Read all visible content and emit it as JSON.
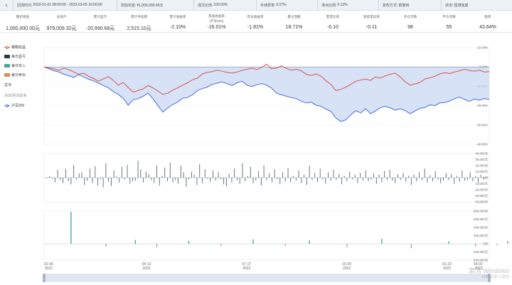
{
  "topbar": {
    "back_icon": "chevron-left-icon",
    "items": [
      {
        "label": "回测时间:",
        "value": "2022-01-01 08:00:00 - 2023-03-05 16:00:00"
      },
      {
        "label": "初始资金:",
        "value": "¥1,000,000.00元"
      },
      {
        "label": "成交比例:",
        "value": "100.00%"
      },
      {
        "label": "手续费率:",
        "value": "0.07%"
      },
      {
        "label": "滑点比例:",
        "value": "0.12%"
      },
      {
        "label": "复权方式:",
        "value": "前复权"
      },
      {
        "label": "状态:",
        "value": "回测完成"
      }
    ]
  },
  "stats": [
    {
      "label": "期初资金",
      "label2": "",
      "value": "1,000,000.00元"
    },
    {
      "label": "总资产",
      "label2": "",
      "value": "979,009.32元"
    },
    {
      "label": "累计盈亏",
      "label2": "",
      "value": "-20,990.68元"
    },
    {
      "label": "累计手续费",
      "label2": "",
      "value": "2,515.10元"
    },
    {
      "label": "累计收益率",
      "label2": "",
      "value": "-2.10%"
    },
    {
      "label": "基准收益率",
      "label2": "(沪深300)",
      "value": "-16.01%"
    },
    {
      "label": "年化收益率",
      "label2": "",
      "value": "-1.81%"
    },
    {
      "label": "最大回撤",
      "label2": "",
      "value": "18.71%"
    },
    {
      "label": "夏普比率",
      "label2": "",
      "value": "-0.10"
    },
    {
      "label": "索提诺比率",
      "label2": "",
      "value": "-0.11"
    },
    {
      "label": "开仓次数",
      "label2": "",
      "value": "98"
    },
    {
      "label": "平仓次数",
      "label2": "",
      "value": "55"
    },
    {
      "label": "胜率",
      "label2": "",
      "value": "43.64%"
    }
  ],
  "legend": {
    "strategy": "策略收益",
    "daily_pnl": "每日盈亏",
    "daily_buy": "每日买入",
    "daily_sell": "每日卖出",
    "benchmark_header": "基准",
    "add_benchmark": "添加/更改基准",
    "hs300": "沪深300"
  },
  "colors": {
    "strategy": "#d9534f",
    "benchmark": "#4a6fd0",
    "benchmark_fill": "#c9d8f3",
    "pnl": "#5a6672",
    "buy": "#2f9e8f",
    "sell": "#e0896a",
    "buy_legend": "#4aa3a0",
    "sell_legend": "#e08a5a",
    "pnl_legend": "#2b3542"
  },
  "axes": {
    "returns": [
      "10.00%",
      "0.00%",
      "-10.00%",
      "-20.00%",
      "-30.00%",
      "-40.00%"
    ],
    "pnl": [
      "40,000元",
      "30,000元",
      "20,000元",
      "10,000元",
      "0元",
      "-10,000元",
      "-20,000元",
      "-30,000元",
      "-40,000元"
    ],
    "trade": [
      "800,000元",
      "600,000元",
      "400,000元",
      "200,000元",
      "0元",
      "-200,000元",
      "-400,000元"
    ],
    "dates": [
      {
        "md": "01-06",
        "y": "2022"
      },
      {
        "md": "04-13",
        "y": "2022"
      },
      {
        "md": "07-17",
        "y": "2022"
      },
      {
        "md": "10-20",
        "y": "2022"
      },
      {
        "md": "01-23",
        "y": "2023"
      },
      {
        "md": "03-03",
        "y": "2023"
      }
    ]
  },
  "chart_data": [
    {
      "type": "line",
      "ylim": [
        -40,
        10
      ],
      "series": [
        {
          "name": "策略收益",
          "values": [
            0,
            -0.5,
            -1,
            -1.8,
            -0.6,
            -1.4,
            -2.6,
            -3.8,
            -3.2,
            -4.8,
            -6,
            -7.4,
            -6.2,
            -5,
            -7,
            -9.4,
            -8,
            -10.6,
            -13,
            -12.2,
            -11.4,
            -9.6,
            -10.8,
            -12.4,
            -14.2,
            -13.6,
            -12,
            -10.8,
            -9.4,
            -8.2,
            -6.6,
            -5.8,
            -3.6,
            -2.8,
            -2.4,
            -1.6,
            -2.2,
            -2.8,
            -3.2,
            -2.6,
            -1.8,
            -1.2,
            -0.6,
            -1.4,
            -0.2,
            1.4,
            -1,
            -0.6,
            0.6,
            -0.8,
            -1.6,
            -1.2,
            -2,
            -3.8,
            -4.4,
            -3.6,
            -4.8,
            -7.2,
            -9,
            -12.2,
            -11.6,
            -10.4,
            -9,
            -7.4,
            -6.8,
            -6.2,
            -7,
            -5.2,
            -5.8,
            -4.6,
            -3.8,
            -3.2,
            -5.2,
            -7.6,
            -9.4,
            -8.8,
            -8,
            -6.2,
            -5.6,
            -4.8,
            -3.6,
            -3,
            -3.4,
            -2.6,
            -2,
            -1.2,
            -1.8,
            -2.2,
            -1.6,
            -2.6,
            -2.4
          ]
        },
        {
          "name": "沪深300",
          "values": [
            0,
            -1,
            -2,
            -2.6,
            -3.8,
            -4.6,
            -5.4,
            -4,
            -5.2,
            -6.4,
            -7.2,
            -8.4,
            -9.6,
            -10.8,
            -12.8,
            -14.2,
            -16.2,
            -19.8,
            -17,
            -16.4,
            -15.2,
            -13.6,
            -16.4,
            -20,
            -23.4,
            -21.2,
            -19.4,
            -18.2,
            -16.2,
            -15.8,
            -14.4,
            -12.2,
            -11.2,
            -10.4,
            -9,
            -8.4,
            -7.8,
            -8.6,
            -9.6,
            -8.2,
            -7.4,
            -9.4,
            -10.2,
            -9.2,
            -8.6,
            -9.4,
            -11,
            -13.6,
            -14.4,
            -15.2,
            -15.8,
            -16.4,
            -17.8,
            -18.6,
            -18.2,
            -19.8,
            -20.4,
            -21.8,
            -23,
            -26.4,
            -28.2,
            -27.4,
            -24.8,
            -22.6,
            -23.8,
            -21.6,
            -24.2,
            -22.8,
            -21,
            -20.4,
            -21.2,
            -22.4,
            -21.6,
            -22.6,
            -24.2,
            -22.8,
            -21.4,
            -21,
            -19.6,
            -20,
            -18.6,
            -18.4,
            -17.6,
            -16.4,
            -15.6,
            -16.8,
            -17.8,
            -16.6,
            -17.2,
            -16.4,
            -16.8
          ]
        }
      ]
    },
    {
      "type": "bar",
      "name": "每日盈亏",
      "ylim": [
        -40000,
        40000
      ],
      "values": [
        -1200,
        2500,
        -1500,
        -8000,
        13000,
        -4000,
        -9000,
        15000,
        -6000,
        -11000,
        21000,
        -3000,
        7000,
        9000,
        -12000,
        -5000,
        15000,
        -9000,
        19000,
        -13000,
        -2000,
        -16000,
        24000,
        -7000,
        -14000,
        12000,
        2000,
        -8000,
        18000,
        -3000,
        21000,
        -10000,
        -6000,
        -5000,
        28000,
        14000,
        -8000,
        10000,
        6000,
        -4000,
        -9000,
        20000,
        -13000,
        3000,
        17000,
        -6000,
        25000,
        -8000,
        -4000,
        -10000,
        20000,
        9000,
        -15000,
        -3000,
        10000,
        5000,
        -12000,
        22000,
        -9000,
        14000,
        -2000,
        -7000,
        12000,
        -5000,
        9000,
        -3000,
        -11000,
        -14000,
        6000,
        -8000,
        15000,
        -4000,
        -10000,
        24000,
        -6000,
        3000,
        18000,
        -9000,
        -5000,
        11000,
        -13000,
        20000,
        -4000,
        7000,
        -8000,
        14000,
        -3000,
        -11000,
        9000,
        -6000,
        16000,
        -8000,
        3000,
        -5000,
        12000,
        -9000,
        5000,
        -12000,
        20000,
        -4000,
        8000,
        -7000,
        15000,
        -3000,
        -10000,
        9000,
        -5000,
        13000,
        -4000,
        6000,
        -11000,
        3000,
        -6000,
        10000,
        -3000,
        5000,
        -9000,
        8000,
        -5000,
        12000,
        -6000,
        -3000,
        7000,
        -10000,
        5000,
        -8000,
        11000,
        -4000,
        13000,
        -5000,
        -9000,
        6000,
        -4000,
        8000,
        -7000,
        3000,
        -12000,
        5000,
        -6000,
        9000,
        -4000,
        15000,
        -8000,
        4000,
        -6000,
        11000,
        -3000,
        -9000,
        -5000,
        8000,
        -4000,
        6000,
        -10000,
        3000,
        -7000,
        12000,
        -5000,
        -4000,
        9000,
        -6000,
        3000,
        -8000,
        5000,
        -3000
      ]
    },
    {
      "type": "bar",
      "name": "每日买入/卖出",
      "ylim": [
        -400000,
        800000
      ],
      "buy": [
        [
          9,
          780000
        ],
        [
          33,
          95000
        ],
        [
          53,
          72000
        ],
        [
          77,
          110000
        ],
        [
          98,
          82000
        ],
        [
          125,
          120000
        ],
        [
          150,
          60000
        ],
        [
          172,
          65000
        ]
      ],
      "sell": [
        [
          22,
          -70000
        ],
        [
          41,
          -90000
        ],
        [
          65,
          -55000
        ],
        [
          89,
          -50000
        ],
        [
          112,
          -85000
        ],
        [
          136,
          -110000
        ],
        [
          160,
          -70000
        ],
        [
          168,
          -35000
        ]
      ]
    }
  ]
}
